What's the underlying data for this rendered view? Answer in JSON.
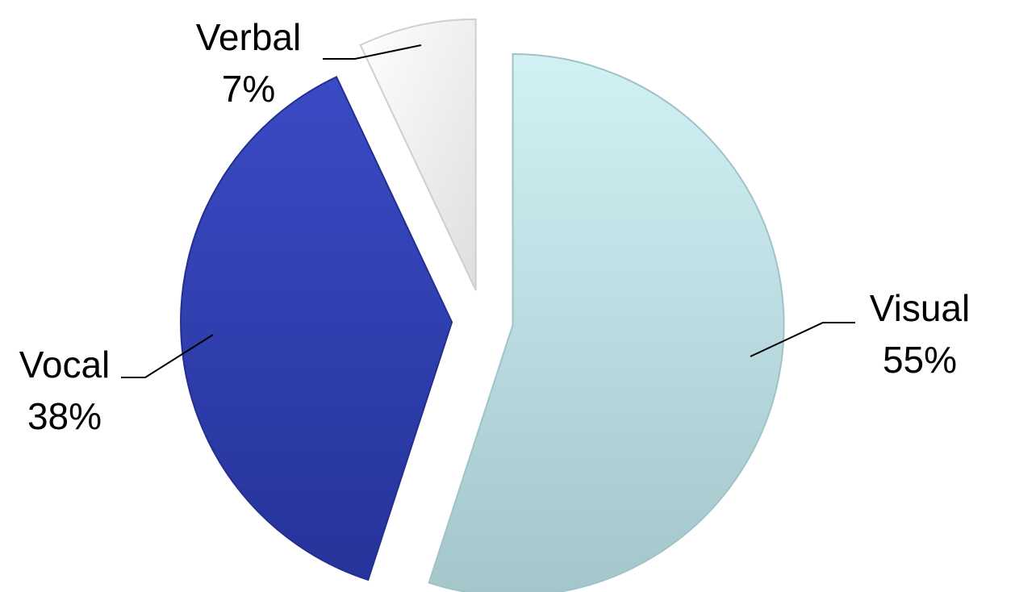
{
  "chart_data": {
    "type": "pie",
    "title": "",
    "slices": [
      {
        "label": "Visual",
        "value": 55,
        "value_label": "55%",
        "color": "#bfe6ec"
      },
      {
        "label": "Vocal",
        "value": 38,
        "value_label": "38%",
        "color": "#3343b8"
      },
      {
        "label": "Verbal",
        "value": 7,
        "value_label": "7%",
        "color": "#f2f2f2"
      }
    ],
    "start_angle": "12 o'clock, clockwise",
    "exploded": true,
    "legend": "none",
    "labels": "outside with leader lines"
  }
}
